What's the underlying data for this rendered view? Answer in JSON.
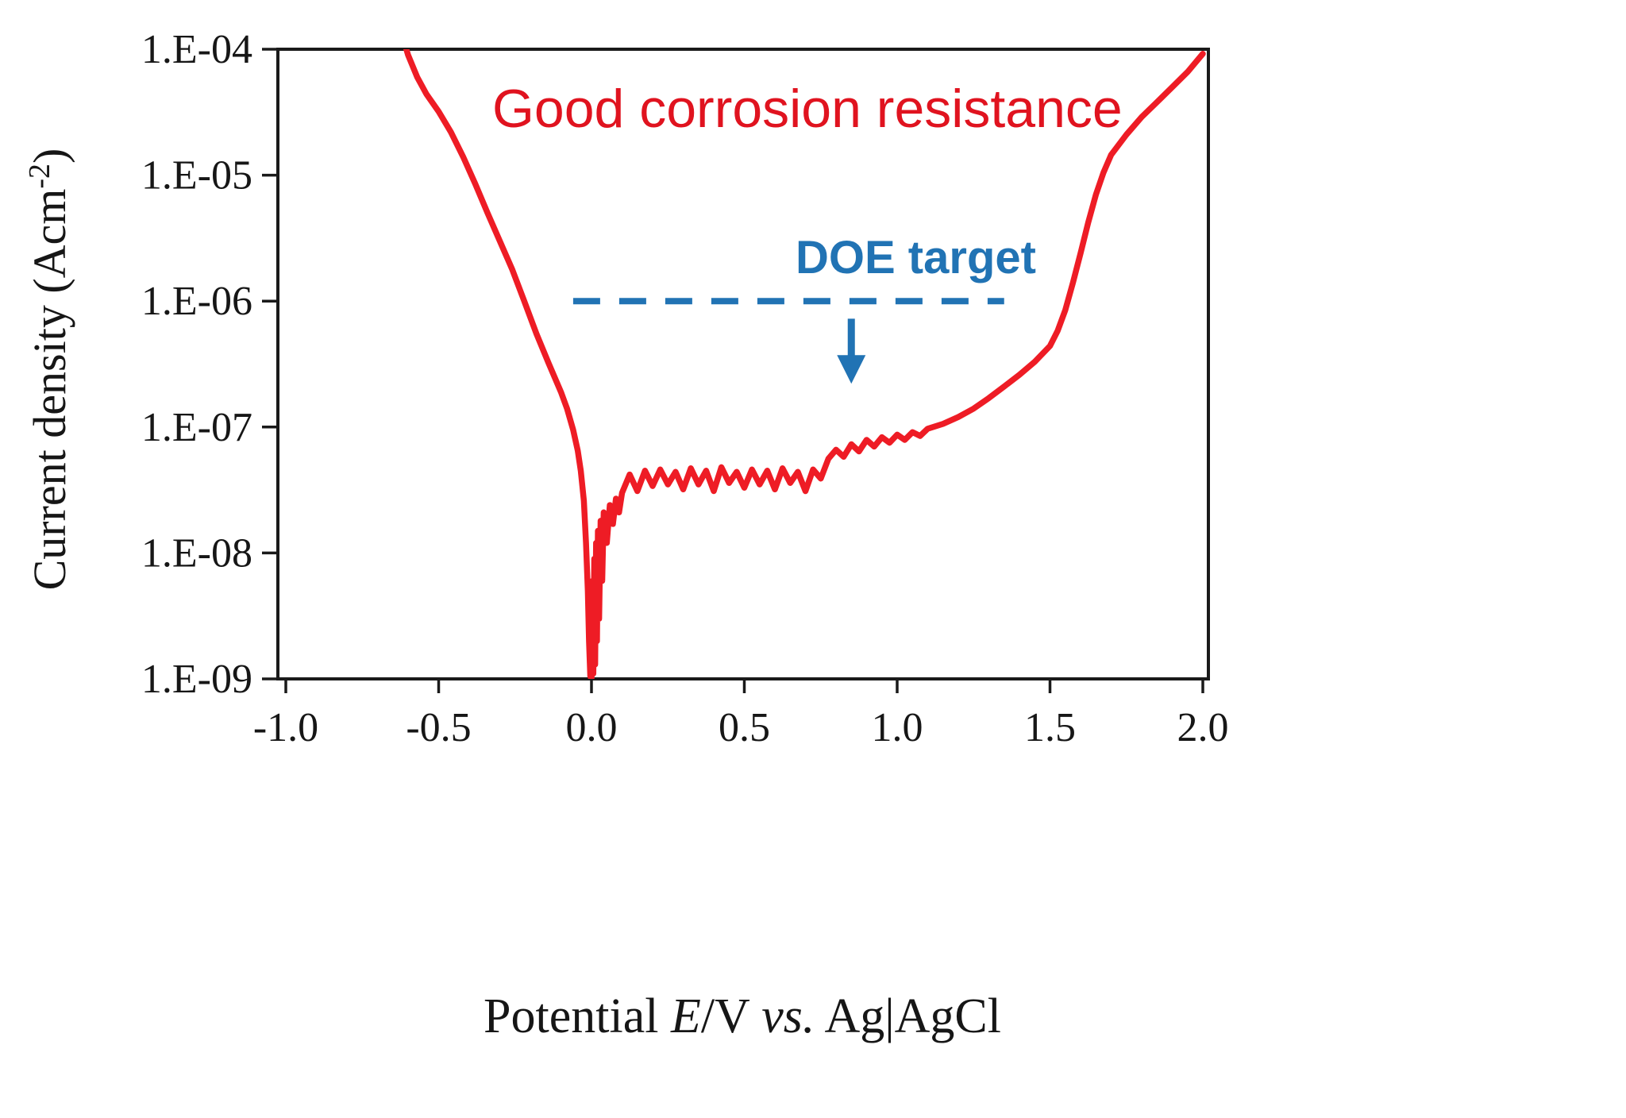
{
  "annotations": {
    "good_corrosion": {
      "text": "Good corrosion resistance",
      "color": "#e0131f"
    },
    "doe_target": {
      "text": "DOE target",
      "color": "#2173b4"
    }
  },
  "axes": {
    "ylabel": {
      "prefix": "Current density (Acm",
      "sup": "-2",
      "suffix": ")"
    },
    "xlabel": {
      "part1": "Potential ",
      "italic1": "E",
      "part2": "/V ",
      "italic2": "vs.",
      "part3": " Ag|AgCl"
    }
  },
  "chart_data": {
    "type": "line",
    "title": "",
    "xlabel": "Potential E/V vs. Ag|AgCl",
    "ylabel": "Current density (Acm^-2)",
    "xlim": [
      -1.0,
      2.0
    ],
    "ylog_lim": [
      -9,
      -4
    ],
    "grid": false,
    "x_ticks": [
      -1.0,
      -0.5,
      0.0,
      0.5,
      1.0,
      1.5,
      2.0
    ],
    "x_tick_labels": [
      "-1.0",
      "-0.5",
      "0.0",
      "0.5",
      "1.0",
      "1.5",
      "2.0"
    ],
    "y_tick_exponents": [
      -4,
      -5,
      -6,
      -7,
      -8,
      -9
    ],
    "y_tick_labels": [
      "1.E-04",
      "1.E-05",
      "1.E-06",
      "1.E-07",
      "1.E-08",
      "1.E-09"
    ],
    "reference_line": {
      "label": "DOE target",
      "value": 1e-06,
      "x_start": -0.06,
      "x_end": 1.35,
      "color": "#2173b4",
      "style": "dashed"
    },
    "arrow": {
      "x": 0.85,
      "from_log": -6.14,
      "to_log": -6.58,
      "color": "#2173b4"
    },
    "series": [
      {
        "name": "polarization-curve",
        "color": "#ee1c25",
        "points": [
          [
            -0.62,
            0.00013
          ],
          [
            -0.6,
            9e-05
          ],
          [
            -0.57,
            6e-05
          ],
          [
            -0.54,
            4.4e-05
          ],
          [
            -0.5,
            3.2e-05
          ],
          [
            -0.46,
            2.2e-05
          ],
          [
            -0.42,
            1.4e-05
          ],
          [
            -0.38,
            8.5e-06
          ],
          [
            -0.34,
            5e-06
          ],
          [
            -0.3,
            3e-06
          ],
          [
            -0.26,
            1.8e-06
          ],
          [
            -0.22,
            1e-06
          ],
          [
            -0.18,
            5.5e-07
          ],
          [
            -0.14,
            3.2e-07
          ],
          [
            -0.1,
            1.9e-07
          ],
          [
            -0.08,
            1.4e-07
          ],
          [
            -0.06,
            9.5e-08
          ],
          [
            -0.045,
            6.5e-08
          ],
          [
            -0.035,
            4.5e-08
          ],
          [
            -0.025,
            2.6e-08
          ],
          [
            -0.018,
            1.2e-08
          ],
          [
            -0.012,
            5e-09
          ],
          [
            -0.008,
            2e-09
          ],
          [
            -0.004,
            1.05e-09
          ],
          [
            0.0,
            1e-09
          ],
          [
            0.003,
            6e-09
          ],
          [
            0.006,
            1.1e-09
          ],
          [
            0.009,
            9e-09
          ],
          [
            0.012,
            1.3e-09
          ],
          [
            0.015,
            1.2e-08
          ],
          [
            0.018,
            2e-09
          ],
          [
            0.021,
            1.5e-08
          ],
          [
            0.025,
            3e-09
          ],
          [
            0.03,
            1.8e-08
          ],
          [
            0.035,
            6e-09
          ],
          [
            0.04,
            2.1e-08
          ],
          [
            0.05,
            1.2e-08
          ],
          [
            0.06,
            2.4e-08
          ],
          [
            0.07,
            1.7e-08
          ],
          [
            0.08,
            2.7e-08
          ],
          [
            0.09,
            2.1e-08
          ],
          [
            0.1,
            3e-08
          ],
          [
            0.125,
            4.2e-08
          ],
          [
            0.15,
            3.1e-08
          ],
          [
            0.175,
            4.5e-08
          ],
          [
            0.2,
            3.4e-08
          ],
          [
            0.225,
            4.6e-08
          ],
          [
            0.25,
            3.5e-08
          ],
          [
            0.275,
            4.4e-08
          ],
          [
            0.3,
            3.2e-08
          ],
          [
            0.325,
            4.7e-08
          ],
          [
            0.35,
            3.5e-08
          ],
          [
            0.375,
            4.5e-08
          ],
          [
            0.4,
            3.1e-08
          ],
          [
            0.425,
            4.8e-08
          ],
          [
            0.45,
            3.6e-08
          ],
          [
            0.475,
            4.4e-08
          ],
          [
            0.5,
            3.3e-08
          ],
          [
            0.525,
            4.6e-08
          ],
          [
            0.55,
            3.5e-08
          ],
          [
            0.575,
            4.5e-08
          ],
          [
            0.6,
            3.2e-08
          ],
          [
            0.625,
            4.7e-08
          ],
          [
            0.65,
            3.6e-08
          ],
          [
            0.675,
            4.4e-08
          ],
          [
            0.7,
            3.1e-08
          ],
          [
            0.725,
            4.6e-08
          ],
          [
            0.75,
            3.9e-08
          ],
          [
            0.775,
            5.6e-08
          ],
          [
            0.8,
            6.6e-08
          ],
          [
            0.825,
            5.8e-08
          ],
          [
            0.85,
            7.3e-08
          ],
          [
            0.875,
            6.4e-08
          ],
          [
            0.9,
            7.9e-08
          ],
          [
            0.925,
            7e-08
          ],
          [
            0.95,
            8.3e-08
          ],
          [
            0.975,
            7.5e-08
          ],
          [
            1.0,
            8.7e-08
          ],
          [
            1.025,
            7.9e-08
          ],
          [
            1.05,
            9.1e-08
          ],
          [
            1.075,
            8.5e-08
          ],
          [
            1.1,
            9.7e-08
          ],
          [
            1.15,
            1.06e-07
          ],
          [
            1.2,
            1.2e-07
          ],
          [
            1.25,
            1.4e-07
          ],
          [
            1.3,
            1.7e-07
          ],
          [
            1.35,
            2.1e-07
          ],
          [
            1.4,
            2.6e-07
          ],
          [
            1.45,
            3.3e-07
          ],
          [
            1.5,
            4.4e-07
          ],
          [
            1.525,
            5.8e-07
          ],
          [
            1.55,
            8.5e-07
          ],
          [
            1.575,
            1.4e-06
          ],
          [
            1.6,
            2.4e-06
          ],
          [
            1.625,
            4.2e-06
          ],
          [
            1.65,
            7e-06
          ],
          [
            1.675,
            1.05e-05
          ],
          [
            1.7,
            1.45e-05
          ],
          [
            1.75,
            2.1e-05
          ],
          [
            1.8,
            2.9e-05
          ],
          [
            1.85,
            3.8e-05
          ],
          [
            1.9,
            5e-05
          ],
          [
            1.95,
            6.6e-05
          ],
          [
            2.0,
            9.2e-05
          ]
        ]
      }
    ]
  }
}
